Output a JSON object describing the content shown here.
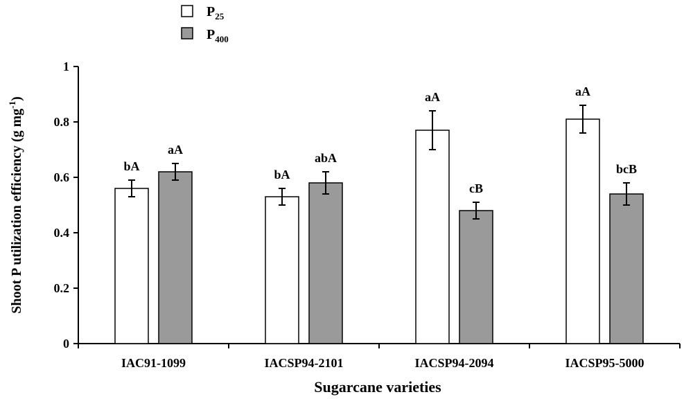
{
  "chart_data": {
    "type": "bar",
    "xlabel": "Sugarcane varieties",
    "ylabel": "Shoot P utilization efficiency (g mg-1)",
    "ylabel_main": "Shoot P utilization efficiency (g mg",
    "ylabel_sup": "-1",
    "ylabel_close": ")",
    "ylim": [
      0,
      1
    ],
    "yticks": [
      "0",
      "0.2",
      "0.4",
      "0.6",
      "0.8",
      "1"
    ],
    "yticks_values": [
      0,
      0.2,
      0.4,
      0.6,
      0.8,
      1
    ],
    "categories": [
      "IAC91-1099",
      "IACSP94-2101",
      "IACSP94-2094",
      "IACSP95-5000"
    ],
    "legend_position": "top-left",
    "series": [
      {
        "name": "P25",
        "name_main": "P",
        "name_sub": "25",
        "color": "#ffffff",
        "values": [
          0.56,
          0.53,
          0.77,
          0.81
        ],
        "errors": [
          0.03,
          0.03,
          0.07,
          0.05
        ],
        "labels": [
          "bA",
          "bA",
          "aA",
          "aA"
        ]
      },
      {
        "name": "P400",
        "name_main": "P",
        "name_sub": "400",
        "color": "#9a9a9a",
        "values": [
          0.62,
          0.58,
          0.48,
          0.54
        ],
        "errors": [
          0.03,
          0.04,
          0.03,
          0.04
        ],
        "labels": [
          "aA",
          "abA",
          "cB",
          "bcB"
        ]
      }
    ]
  }
}
